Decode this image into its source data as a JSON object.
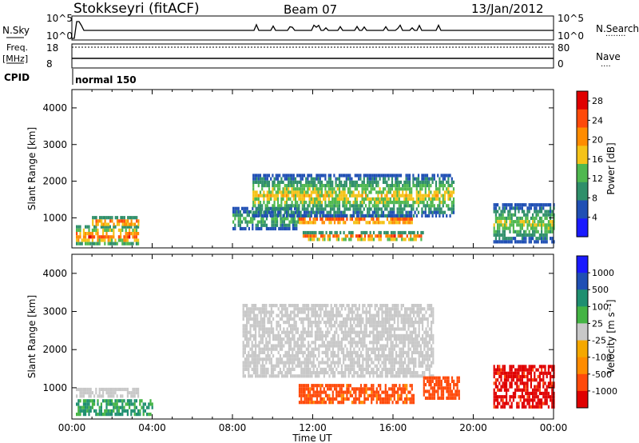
{
  "header": {
    "station": "Stokkseyri (fitACF)",
    "beam": "Beam 07",
    "date": "13/Jan/2012"
  },
  "nsky_panel": {
    "left_label": "N.Sky",
    "right_label": "N.Search",
    "ticks": [
      "10^5",
      "10^0"
    ],
    "right_ticks": [
      "10^5",
      "10^0"
    ],
    "right_legend": "········"
  },
  "freq_panel": {
    "left_label_1": "Freq.",
    "left_label_2": "[MHz]",
    "left_ticks": [
      "18",
      "8"
    ],
    "right_label": "Nave",
    "right_ticks": [
      "80",
      "0"
    ],
    "right_legend": "····"
  },
  "cpid_panel": {
    "label": "CPID",
    "mode": "normal 150"
  },
  "colors": {
    "power": [
      "#1a1aff",
      "#1f4fb4",
      "#2f8f6a",
      "#4fb84f",
      "#f5c318",
      "#ff8c00",
      "#ff4a0a",
      "#e00000"
    ],
    "velocity": [
      "#e00000",
      "#ff4a0a",
      "#ff8c00",
      "#f5a800",
      "#c8c8c8",
      "#44b444",
      "#1f8f70",
      "#1f4fb4",
      "#1a1aff"
    ],
    "ground_scatter": "#c8c8c8"
  },
  "chart_data": [
    {
      "type": "heatmap",
      "panel": "power",
      "ylabel": "Slant Range [km]",
      "ylim": [
        180,
        4500
      ],
      "y_ticks": [
        "1000",
        "2000",
        "3000",
        "4000"
      ],
      "colorbar_label": "Power [dB]",
      "colorbar_ticks": [
        "4",
        "8",
        "12",
        "16",
        "20",
        "24",
        "28"
      ],
      "colorbar_range": [
        0,
        30
      ],
      "x_ticks": [
        "00:00",
        "04:00",
        "08:00",
        "12:00",
        "16:00",
        "20:00",
        "00:00"
      ],
      "xlim": [
        0,
        24
      ],
      "echo_regions": [
        {
          "t": [
            0.2,
            3.3
          ],
          "range": [
            300,
            800
          ],
          "db_peak": 26
        },
        {
          "t": [
            1.0,
            3.3
          ],
          "range": [
            800,
            1050
          ],
          "db_peak": 27
        },
        {
          "t": [
            8.0,
            11.3
          ],
          "range": [
            700,
            1300
          ],
          "db_peak": 14
        },
        {
          "t": [
            11.3,
            17.0
          ],
          "range": [
            850,
            1100
          ],
          "db_peak": 29
        },
        {
          "t": [
            11.5,
            17.5
          ],
          "range": [
            420,
            640
          ],
          "db_peak": 27
        },
        {
          "t": [
            9.0,
            19.0
          ],
          "range": [
            1100,
            2200
          ],
          "db_peak": 18
        },
        {
          "t": [
            21.0,
            24.0
          ],
          "range": [
            350,
            1400
          ],
          "db_peak": 16
        }
      ]
    },
    {
      "type": "heatmap",
      "panel": "velocity",
      "ylabel": "Slant Range [km]",
      "ylim": [
        180,
        4500
      ],
      "y_ticks": [
        "1000",
        "2000",
        "3000",
        "4000"
      ],
      "xlabel": "Time UT",
      "x_ticks": [
        "00:00",
        "04:00",
        "08:00",
        "12:00",
        "16:00",
        "20:00",
        "00:00"
      ],
      "xlim": [
        0,
        24
      ],
      "colorbar_label": "Velocity [m s⁻¹]",
      "colorbar_ticks": [
        "1000",
        "500",
        "100",
        "25",
        "-25",
        "-100",
        "-500",
        "-1000"
      ],
      "echo_regions": [
        {
          "t": [
            0.2,
            3.3
          ],
          "range": [
            800,
            1000
          ],
          "velocity": 0,
          "gs": true
        },
        {
          "t": [
            0.2,
            4.0
          ],
          "range": [
            300,
            700
          ],
          "velocity": 150
        },
        {
          "t": [
            8.5,
            18.0
          ],
          "range": [
            1300,
            3200
          ],
          "velocity": 0,
          "gs": true
        },
        {
          "t": [
            11.3,
            17.0
          ],
          "range": [
            600,
            1100
          ],
          "velocity": -200
        },
        {
          "t": [
            17.5,
            19.3
          ],
          "range": [
            700,
            1300
          ],
          "velocity": -300
        },
        {
          "t": [
            21.0,
            24.0
          ],
          "range": [
            500,
            1600
          ],
          "velocity": -600
        }
      ]
    }
  ]
}
